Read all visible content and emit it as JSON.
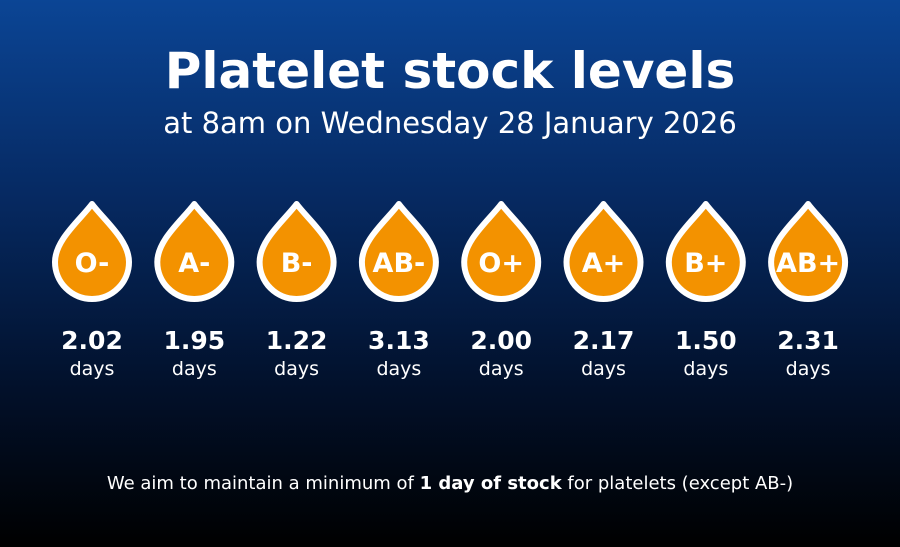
{
  "header": {
    "title": "Platelet stock levels",
    "subtitle": "at 8am on Wednesday 28 January 2026"
  },
  "items": [
    {
      "group": "O-",
      "value": "2.02",
      "unit": "days"
    },
    {
      "group": "A-",
      "value": "1.95",
      "unit": "days"
    },
    {
      "group": "B-",
      "value": "1.22",
      "unit": "days"
    },
    {
      "group": "AB-",
      "value": "3.13",
      "unit": "days"
    },
    {
      "group": "O+",
      "value": "2.00",
      "unit": "days"
    },
    {
      "group": "A+",
      "value": "2.17",
      "unit": "days"
    },
    {
      "group": "B+",
      "value": "1.50",
      "unit": "days"
    },
    {
      "group": "AB+",
      "value": "2.31",
      "unit": "days"
    }
  ],
  "footer": {
    "before": "We aim to maintain a minimum of ",
    "bold": "1 day of stock",
    "after": " for platelets (except AB-)"
  }
}
